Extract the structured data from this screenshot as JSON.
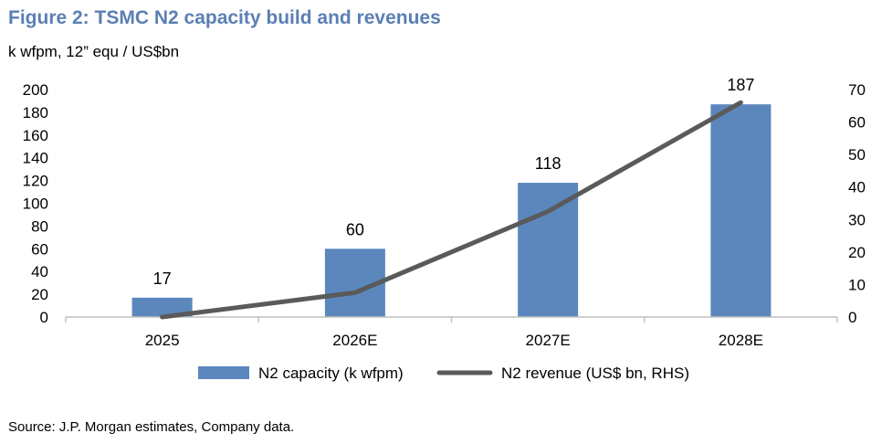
{
  "chart_data": {
    "type": "bar",
    "title": "Figure 2: TSMC N2 capacity build and revenues",
    "subtitle": "k wfpm, 12” equ / US$bn",
    "categories": [
      "2025",
      "2026E",
      "2027E",
      "2028E"
    ],
    "series": [
      {
        "name": "N2 capacity (k wfpm)",
        "type": "bar",
        "axis": "left",
        "color": "#5b87bd",
        "values": [
          17,
          60,
          118,
          187
        ],
        "data_labels": [
          "17",
          "60",
          "118",
          "187"
        ]
      },
      {
        "name": "N2 revenue (US$ bn, RHS)",
        "type": "line",
        "axis": "right",
        "color": "#5a5a5a",
        "values": [
          0,
          7.5,
          32.5,
          66
        ]
      }
    ],
    "left_axis": {
      "min": 0,
      "max": 200,
      "ticks": [
        "0",
        "20",
        "40",
        "60",
        "80",
        "100",
        "120",
        "140",
        "160",
        "180",
        "200"
      ]
    },
    "right_axis": {
      "min": 0,
      "max": 70,
      "ticks": [
        "0",
        "10",
        "20",
        "30",
        "40",
        "50",
        "60",
        "70"
      ]
    },
    "grid": false,
    "legend_position": "bottom"
  },
  "footer": {
    "source": "Source: J.P. Morgan estimates, Company data."
  }
}
